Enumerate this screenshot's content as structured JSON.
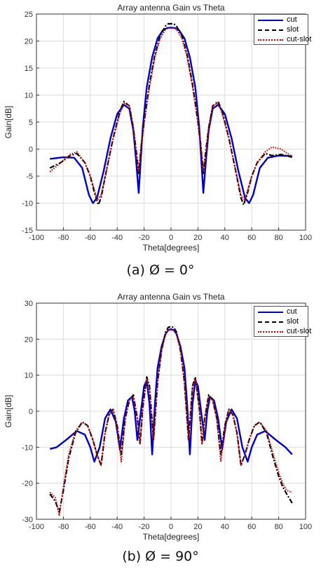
{
  "chart_data": [
    {
      "id": "a",
      "type": "line",
      "title": "Array antenna Gain vs Theta",
      "xlabel": "Theta[degrees]",
      "ylabel": "Gain[dB]",
      "xlim": [
        -100,
        100
      ],
      "ylim": [
        -15,
        25
      ],
      "xticks": [
        -100,
        -80,
        -60,
        -40,
        -20,
        0,
        20,
        40,
        60,
        80,
        100
      ],
      "yticks": [
        -15,
        -10,
        -5,
        0,
        5,
        10,
        15,
        20,
        25
      ],
      "grid": true,
      "legend_position": "top-right",
      "caption": "(a) Ø = 0°",
      "series": [
        {
          "name": "cut",
          "color": "#0000cc",
          "style": "solid",
          "x": [
            -90,
            -80,
            -72,
            -66,
            -61,
            -58,
            -55,
            -50,
            -45,
            -40,
            -35,
            -31,
            -28,
            -26,
            -24,
            -22.5,
            -21,
            -18,
            -14,
            -10,
            -6,
            -3,
            0,
            3,
            6,
            10,
            14,
            18,
            21,
            22.5,
            24,
            26,
            28,
            31,
            35,
            40,
            45,
            50,
            55,
            58,
            61,
            66,
            72,
            80,
            90
          ],
          "y": [
            -1.8,
            -1.5,
            -1.6,
            -3.5,
            -8.5,
            -10,
            -9,
            -4,
            2,
            6.5,
            8.2,
            7.5,
            3.5,
            -2,
            -8.1,
            -2,
            4,
            11.5,
            17,
            20.5,
            22,
            22.4,
            22.5,
            22.4,
            22,
            20.5,
            17,
            11.5,
            4,
            -2,
            -8.1,
            -2,
            3.5,
            7.5,
            8.2,
            6.5,
            2,
            -4,
            -9,
            -10,
            -8.5,
            -3.5,
            -1.6,
            -1.2,
            -1.3
          ]
        },
        {
          "name": "slot",
          "color": "#000000",
          "style": "dashdot",
          "x": [
            -90,
            -82,
            -75,
            -70,
            -64,
            -60,
            -57,
            -54,
            -52,
            -48,
            -43,
            -38,
            -35,
            -31,
            -28,
            -25.5,
            -24,
            -22,
            -20,
            -16,
            -12,
            -8,
            -4,
            -2,
            0,
            2,
            4,
            8,
            12,
            16,
            20,
            22,
            24,
            25.5,
            28,
            31,
            35,
            38,
            43,
            48,
            52,
            54,
            57,
            60,
            64,
            70,
            75,
            82,
            90
          ],
          "y": [
            -3.5,
            -2.5,
            -1.2,
            -0.8,
            -2.5,
            -5,
            -8,
            -10.3,
            -9,
            -4,
            2,
            7,
            8.8,
            8,
            4,
            -1,
            -4.5,
            1,
            5,
            12,
            17.5,
            21,
            22.8,
            23.2,
            23.2,
            23.2,
            22.8,
            21,
            17.5,
            12,
            5,
            1,
            -4.5,
            -1,
            4,
            8,
            8.8,
            7,
            2,
            -4,
            -9,
            -10.3,
            -8,
            -5,
            -2.5,
            -0.8,
            -1.2,
            -1,
            -1.5
          ]
        },
        {
          "name": "cut-slot",
          "color": "#cc0000",
          "style": "dotted",
          "x": [
            -90,
            -82,
            -75,
            -70,
            -64,
            -60,
            -57,
            -55,
            -52,
            -48,
            -43,
            -38,
            -35,
            -31,
            -28,
            -25.5,
            -24,
            -22,
            -20,
            -16,
            -12,
            -8,
            -4,
            -2,
            0,
            2,
            4,
            8,
            12,
            16,
            20,
            22,
            24,
            25.5,
            28,
            31,
            35,
            38,
            43,
            48,
            52,
            55,
            57,
            60,
            64,
            70,
            75,
            82,
            90
          ],
          "y": [
            -4.2,
            -2.5,
            -1,
            -0.5,
            -2.5,
            -5,
            -7.5,
            -9.5,
            -8.5,
            -4,
            2,
            6.5,
            8.5,
            8,
            4,
            -1.5,
            -4,
            1,
            5,
            11.5,
            17,
            20.5,
            22.2,
            22.4,
            22.4,
            22.4,
            22.2,
            20.5,
            17,
            11.5,
            5,
            1,
            -4,
            -1.5,
            4,
            8,
            8.5,
            6.5,
            2,
            -4,
            -8.5,
            -9.5,
            -7.5,
            -5,
            -2.5,
            -0.5,
            0.4,
            0,
            -1.4
          ]
        }
      ]
    },
    {
      "id": "b",
      "type": "line",
      "title": "Array antenna Gain vs Theta",
      "xlabel": "Theta[degrees]",
      "ylabel": "Gain[dB]",
      "xlim": [
        -100,
        100
      ],
      "ylim": [
        -30,
        30
      ],
      "xticks": [
        -100,
        -80,
        -60,
        -40,
        -20,
        0,
        20,
        40,
        60,
        80,
        100
      ],
      "yticks": [
        -30,
        -20,
        -10,
        0,
        10,
        20,
        30
      ],
      "grid": true,
      "legend_position": "top-right",
      "caption": "(b) Ø = 90°",
      "series": [
        {
          "name": "cut",
          "color": "#0000cc",
          "style": "solid",
          "x": [
            -90,
            -85,
            -78,
            -70,
            -64,
            -60,
            -57,
            -53,
            -49,
            -45,
            -41,
            -38,
            -35,
            -32,
            -29,
            -27,
            -25,
            -23,
            -20,
            -18,
            -16,
            -14,
            -12,
            -10,
            -7,
            -4,
            -2,
            0,
            2,
            4,
            7,
            10,
            12,
            14,
            16,
            18,
            20,
            23,
            25,
            27,
            29,
            32,
            35,
            38,
            41,
            45,
            49,
            53,
            57,
            60,
            64,
            70,
            78,
            85,
            90
          ],
          "y": [
            -10.5,
            -10,
            -8,
            -5.5,
            -6.5,
            -10,
            -14,
            -10,
            -2,
            0.5,
            -3,
            -10.5,
            -2,
            3,
            4,
            0,
            -8,
            -2,
            7,
            8.5,
            2,
            -12,
            2,
            12,
            18,
            21.5,
            22.5,
            22.8,
            22.5,
            21.5,
            18,
            12,
            2,
            -12,
            2,
            8.5,
            7,
            -2,
            -8,
            0,
            4,
            3,
            -2,
            -10.5,
            -3,
            0.5,
            -2,
            -10,
            -14,
            -10,
            -6.5,
            -5.5,
            -8,
            -10,
            -12
          ]
        },
        {
          "name": "slot",
          "color": "#000000",
          "style": "dashdot",
          "x": [
            -90,
            -86,
            -83,
            -80,
            -76,
            -71,
            -66,
            -62,
            -58,
            -55,
            -52,
            -49,
            -46,
            -43,
            -40,
            -37,
            -34,
            -31,
            -28,
            -25,
            -23,
            -21,
            -18,
            -16,
            -13,
            -10,
            -7,
            -4,
            -2,
            0,
            2,
            4,
            7,
            10,
            13,
            16,
            18,
            21,
            23,
            25,
            28,
            31,
            34,
            37,
            40,
            43,
            46,
            49,
            52,
            55,
            58,
            62,
            66,
            71,
            76,
            80,
            83,
            86,
            90
          ],
          "y": [
            -23,
            -25,
            -28,
            -22,
            -13,
            -6,
            -3,
            -4,
            -8,
            -12,
            -15,
            -6,
            -1,
            0.5,
            -4,
            -12,
            -2,
            3,
            4.5,
            -2,
            -9,
            1,
            9.5,
            7,
            -8,
            8,
            17,
            22,
            23.3,
            23.5,
            23.3,
            22,
            17,
            8,
            -8,
            7,
            9.5,
            1,
            -9,
            -2,
            4.5,
            3,
            -2,
            -12,
            -4,
            0.5,
            -1,
            -6,
            -15,
            -12,
            -8,
            -4,
            -3,
            -6,
            -13,
            -18,
            -21,
            -23,
            -25.5
          ]
        },
        {
          "name": "cut-slot",
          "color": "#cc0000",
          "style": "dotted",
          "x": [
            -90,
            -86,
            -83,
            -80,
            -76,
            -71,
            -66,
            -62,
            -58,
            -55,
            -52,
            -49,
            -46,
            -43,
            -40,
            -37,
            -34,
            -31,
            -28,
            -25,
            -23,
            -21,
            -18,
            -16,
            -13,
            -10,
            -7,
            -4,
            -2,
            0,
            2,
            4,
            7,
            10,
            13,
            16,
            18,
            21,
            23,
            25,
            28,
            31,
            34,
            37,
            40,
            43,
            46,
            49,
            52,
            55,
            58,
            62,
            66,
            71,
            76,
            80,
            83,
            86,
            90
          ],
          "y": [
            -22.5,
            -24,
            -29,
            -21,
            -12,
            -5.5,
            -3,
            -4,
            -8,
            -12,
            -15,
            -6,
            -1,
            0.3,
            -4.5,
            -14,
            -2,
            3,
            4,
            -2,
            -9,
            1,
            9,
            6.5,
            -8,
            8,
            17,
            21.5,
            22.5,
            22.6,
            22.5,
            21.5,
            17,
            8,
            -8,
            6.5,
            9,
            1,
            -9,
            -2,
            4,
            3,
            -2,
            -14,
            -4.5,
            0.3,
            -1,
            -6,
            -15,
            -12,
            -8,
            -4,
            -3,
            -5.5,
            -12,
            -17,
            -20,
            -22,
            -22.5
          ]
        }
      ]
    }
  ]
}
